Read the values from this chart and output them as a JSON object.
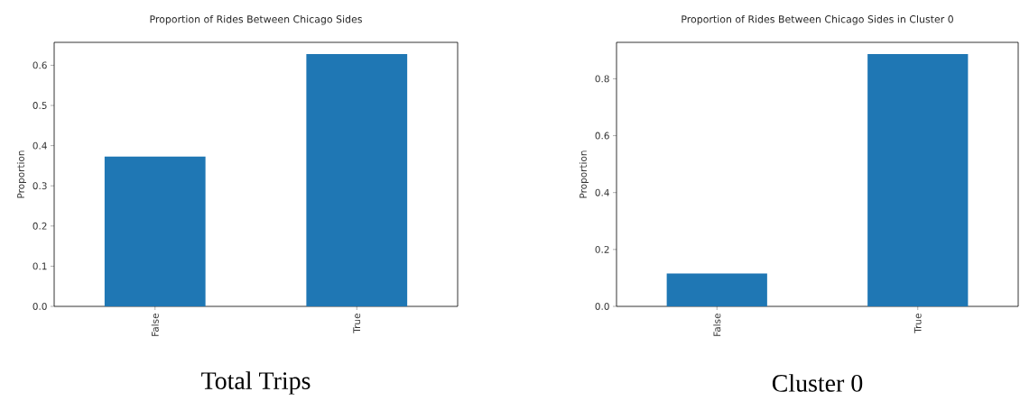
{
  "chart_data": [
    {
      "type": "bar",
      "title": "Proportion of Rides Between Chicago Sides",
      "ylabel": "Proportion",
      "categories": [
        "False",
        "True"
      ],
      "values": [
        0.373,
        0.628
      ],
      "color": "#1f77b4",
      "ylim": [
        0,
        0.657
      ],
      "yticks": [
        {
          "value": 0,
          "label": "0.0"
        },
        0.1,
        0.2,
        0.3,
        0.4,
        0.5,
        0.6
      ],
      "annotations": [
        "Total Trips"
      ]
    },
    {
      "type": "bar",
      "title": "Proportion of Rides Between Chicago Sides in Cluster 0",
      "ylabel": "Proportion",
      "categories": [
        "False",
        "True"
      ],
      "values": [
        0.116,
        0.887
      ],
      "color": "#1f77b4",
      "ylim": [
        0,
        0.928
      ],
      "yticks": [
        {
          "value": 0,
          "label": "0.0"
        },
        0.2,
        0.4,
        0.6,
        0.8
      ],
      "annotations": [
        "Cluster 0"
      ]
    }
  ]
}
